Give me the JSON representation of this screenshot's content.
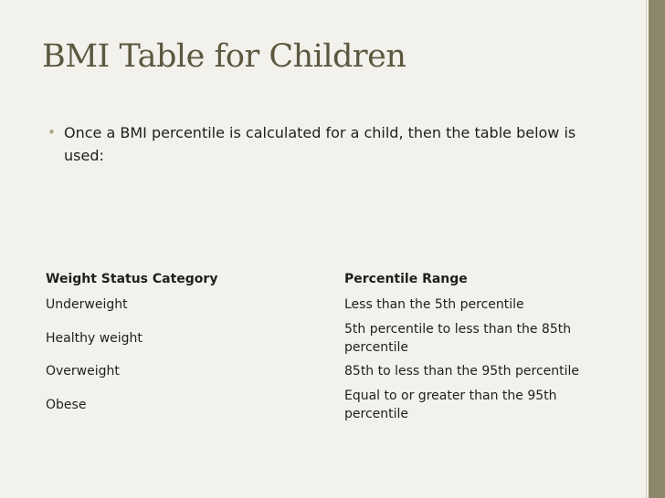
{
  "slide": {
    "title": "BMI Table for Children",
    "bullet": "Once a BMI percentile is calculated for a child, then the table below is used:",
    "bullet_symbol": "•"
  },
  "table": {
    "headers": [
      "Weight Status Category",
      "Percentile Range"
    ],
    "rows": [
      [
        "Underweight",
        "Less than the 5th percentile"
      ],
      [
        "Healthy weight",
        "5th percentile to less than the 85th percentile"
      ],
      [
        "Overweight",
        "85th to less than the 95th percentile"
      ],
      [
        "Obese",
        "Equal to or greater than the 95th percentile"
      ]
    ]
  },
  "colors": {
    "title": "#5c573f",
    "background": "#f2f1ec",
    "accent_band": "#8d876b",
    "bullet": "#a9a37e"
  }
}
